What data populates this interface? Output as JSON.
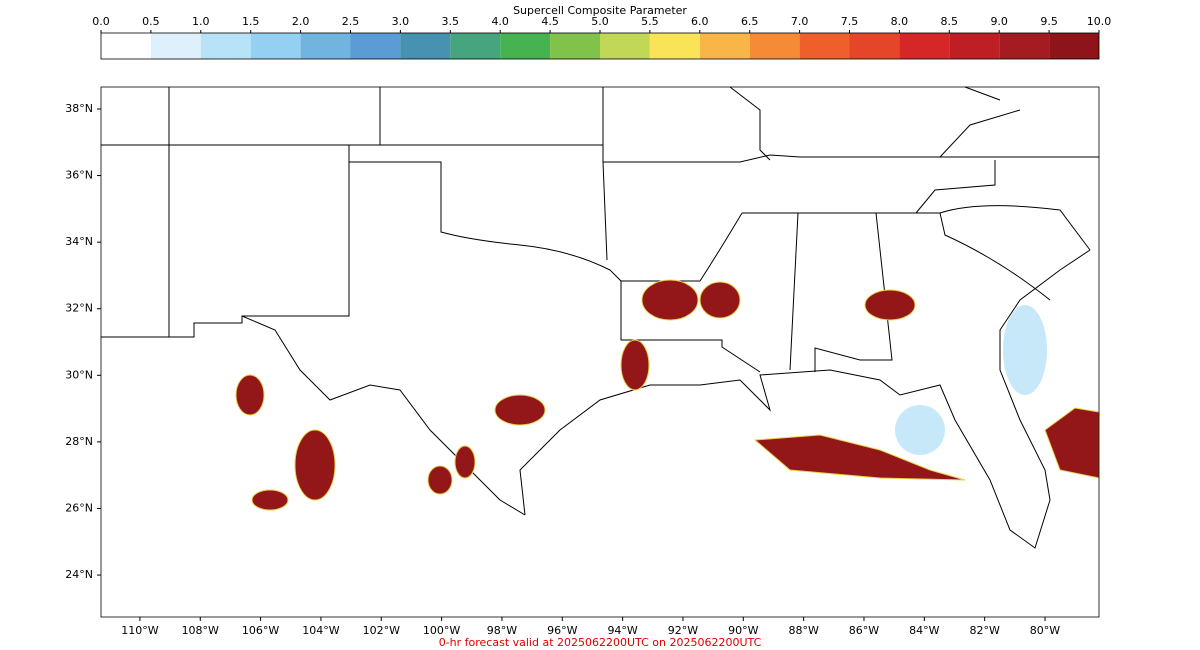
{
  "colorbar": {
    "title": "Supercell Composite Parameter",
    "ticks": [
      {
        "value": 0,
        "label": "0.0"
      },
      {
        "value": 0.5,
        "label": "0.5"
      },
      {
        "value": 1,
        "label": "1.0"
      },
      {
        "value": 1.5,
        "label": "1.5"
      },
      {
        "value": 2,
        "label": "2.0"
      },
      {
        "value": 2.5,
        "label": "2.5"
      },
      {
        "value": 3,
        "label": "3.0"
      },
      {
        "value": 3.5,
        "label": "3.5"
      },
      {
        "value": 4,
        "label": "4.0"
      },
      {
        "value": 4.5,
        "label": "4.5"
      },
      {
        "value": 5,
        "label": "5.0"
      },
      {
        "value": 5.5,
        "label": "5.5"
      },
      {
        "value": 6,
        "label": "6.0"
      },
      {
        "value": 6.5,
        "label": "6.5"
      },
      {
        "value": 7,
        "label": "7.0"
      },
      {
        "value": 7.5,
        "label": "7.5"
      },
      {
        "value": 8,
        "label": "8.0"
      },
      {
        "value": 8.5,
        "label": "8.5"
      },
      {
        "value": 9,
        "label": "9.0"
      },
      {
        "value": 9.5,
        "label": "9.5"
      },
      {
        "value": 10,
        "label": "10.0"
      }
    ],
    "colors": [
      "#ffffff",
      "#ddf0fb",
      "#b8e2f7",
      "#94d0f1",
      "#71b4e0",
      "#5b9bd6",
      "#4792b0",
      "#46a57e",
      "#47b350",
      "#80c24a",
      "#c1d857",
      "#f9e457",
      "#f8b648",
      "#f58b35",
      "#ef5f2b",
      "#e54528",
      "#d52728",
      "#c01e25",
      "#a51b22",
      "#8f1419"
    ]
  },
  "map": {
    "xlim": [
      -111.29,
      -78.21
    ],
    "ylim": [
      22.74,
      38.66
    ],
    "xticks": [
      {
        "value": -110,
        "label": "110°W"
      },
      {
        "value": -108,
        "label": "108°W"
      },
      {
        "value": -106,
        "label": "106°W"
      },
      {
        "value": -104,
        "label": "104°W"
      },
      {
        "value": -102,
        "label": "102°W"
      },
      {
        "value": -100,
        "label": "100°W"
      },
      {
        "value": -98,
        "label": "98°W"
      },
      {
        "value": -96,
        "label": "96°W"
      },
      {
        "value": -94,
        "label": "94°W"
      },
      {
        "value": -92,
        "label": "92°W"
      },
      {
        "value": -90,
        "label": "90°W"
      },
      {
        "value": -88,
        "label": "88°W"
      },
      {
        "value": -86,
        "label": "86°W"
      },
      {
        "value": -84,
        "label": "84°W"
      },
      {
        "value": -82,
        "label": "82°W"
      },
      {
        "value": -80,
        "label": "80°W"
      }
    ],
    "yticks": [
      {
        "value": 38,
        "label": "38°N"
      },
      {
        "value": 36,
        "label": "36°N"
      },
      {
        "value": 34,
        "label": "34°N"
      },
      {
        "value": 32,
        "label": "32°N"
      },
      {
        "value": 30,
        "label": "30°N"
      },
      {
        "value": 28,
        "label": "28°N"
      },
      {
        "value": 26,
        "label": "26°N"
      },
      {
        "value": 24,
        "label": "24°N"
      }
    ]
  },
  "footer": "0-hr forecast valid at 2025062200UTC on 2025062200UTC"
}
